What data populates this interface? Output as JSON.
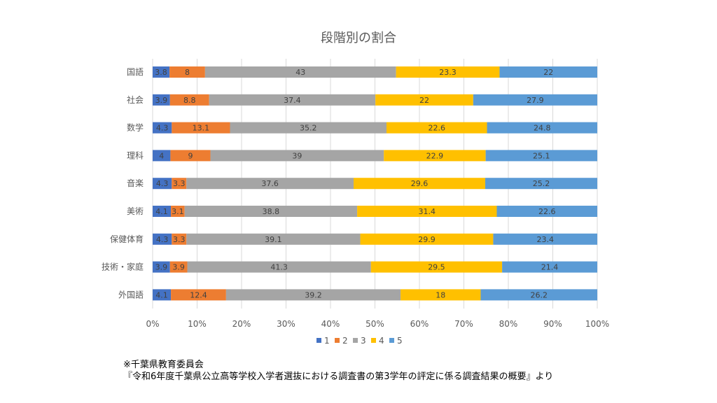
{
  "chart_data": {
    "type": "bar",
    "orientation": "horizontal",
    "stacked": "percent",
    "title": "段階別の割合",
    "categories": [
      "国語",
      "社会",
      "数学",
      "理科",
      "音楽",
      "美術",
      "保健体育",
      "技術・家庭",
      "外国語"
    ],
    "series": [
      {
        "name": "1",
        "color": "#4472C4",
        "values": [
          3.8,
          3.9,
          4.3,
          4,
          4.3,
          4.1,
          4.3,
          3.9,
          4.1
        ]
      },
      {
        "name": "2",
        "color": "#ED7D31",
        "values": [
          8,
          8.8,
          13.1,
          9,
          3.3,
          3.1,
          3.3,
          3.9,
          12.4
        ]
      },
      {
        "name": "3",
        "color": "#A5A5A5",
        "values": [
          43,
          37.4,
          35.2,
          39,
          37.6,
          38.8,
          39.1,
          41.3,
          39.2
        ]
      },
      {
        "name": "4",
        "color": "#FFC000",
        "values": [
          23.3,
          22,
          22.6,
          22.9,
          29.6,
          31.4,
          29.9,
          29.5,
          18
        ]
      },
      {
        "name": "5",
        "color": "#5B9BD5",
        "values": [
          22,
          27.9,
          24.8,
          25.1,
          25.2,
          22.6,
          23.4,
          21.4,
          26.2
        ]
      }
    ],
    "x_ticks": [
      "0%",
      "10%",
      "20%",
      "30%",
      "40%",
      "50%",
      "60%",
      "70%",
      "80%",
      "90%",
      "100%"
    ],
    "xlim": [
      0,
      100
    ],
    "grid": true,
    "legend": "bottom"
  },
  "footnote": {
    "line1": "※千葉県教育委員会",
    "line2": "『令和6年度千葉県公立高等学校入学者選抜における調査書の第3学年の評定に係る調査結果の概要』より"
  }
}
